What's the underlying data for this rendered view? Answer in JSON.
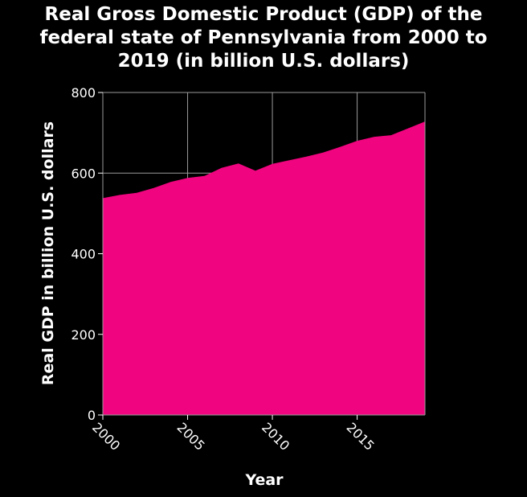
{
  "chart_data": {
    "type": "area",
    "title_lines": [
      "Real Gross Domestic Product (GDP) of the",
      "federal state of Pennsylvania from 2000 to",
      "2019 (in billion U.S. dollars)"
    ],
    "xlabel": "Year",
    "ylabel": "Real GDP in billion U.S. dollars",
    "x": [
      2000,
      2001,
      2002,
      2003,
      2004,
      2005,
      2006,
      2007,
      2008,
      2009,
      2010,
      2011,
      2012,
      2013,
      2014,
      2015,
      2016,
      2017,
      2018,
      2019
    ],
    "values": [
      538,
      546,
      551,
      563,
      578,
      588,
      593,
      613,
      624,
      606,
      623,
      632,
      641,
      651,
      665,
      680,
      690,
      694,
      711,
      728
    ],
    "xlim": [
      2000,
      2019
    ],
    "ylim": [
      0,
      800
    ],
    "x_ticks": [
      2000,
      2005,
      2010,
      2015
    ],
    "y_ticks": [
      0,
      200,
      400,
      600,
      800
    ],
    "grid": true,
    "fill_color": "#f0047f",
    "background_color": "#000000",
    "text_color": "#ffffff",
    "grid_color": "#9a9a9a"
  }
}
